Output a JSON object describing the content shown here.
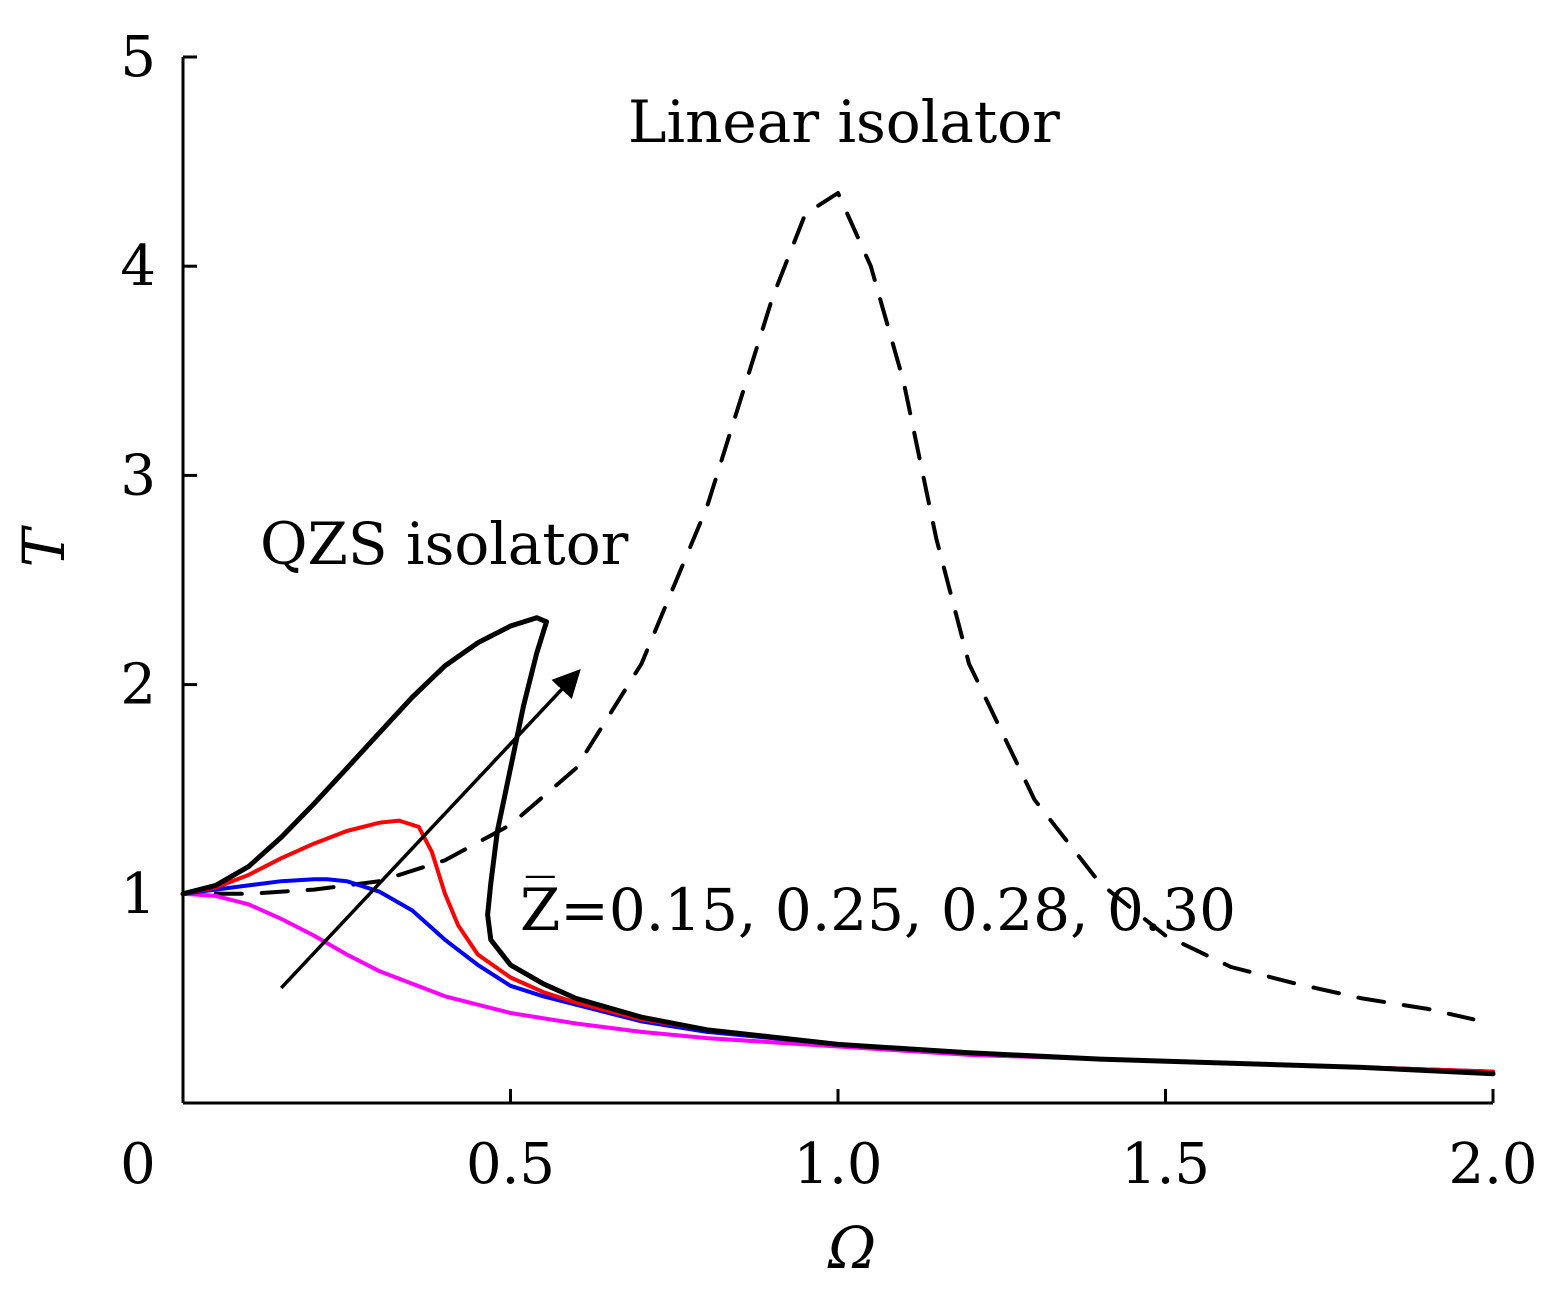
{
  "chart_data": {
    "type": "line",
    "xlabel": "Ω",
    "ylabel": "T",
    "xlim": [
      0,
      2.0
    ],
    "ylim": [
      0,
      5
    ],
    "x_ticks": [
      {
        "value": 0,
        "label": "0"
      },
      {
        "value": 0.5,
        "label": "0.5"
      },
      {
        "value": 1.0,
        "label": "1.0"
      },
      {
        "value": 1.5,
        "label": "1.5"
      },
      {
        "value": 2.0,
        "label": "2.0"
      }
    ],
    "y_ticks": [
      {
        "value": 1,
        "label": "1"
      },
      {
        "value": 2,
        "label": "2"
      },
      {
        "value": 3,
        "label": "3"
      },
      {
        "value": 4,
        "label": "4"
      },
      {
        "value": 5,
        "label": "5"
      }
    ],
    "grid": false,
    "series": [
      {
        "name": "Linear isolator",
        "color": "#000000",
        "style": "dashed",
        "points": [
          [
            0.05,
            1.0
          ],
          [
            0.1,
            1.0
          ],
          [
            0.2,
            1.02
          ],
          [
            0.3,
            1.06
          ],
          [
            0.4,
            1.16
          ],
          [
            0.5,
            1.33
          ],
          [
            0.6,
            1.6
          ],
          [
            0.7,
            2.1
          ],
          [
            0.8,
            2.85
          ],
          [
            0.9,
            3.85
          ],
          [
            0.95,
            4.25
          ],
          [
            1.0,
            4.35
          ],
          [
            1.05,
            4.0
          ],
          [
            1.1,
            3.45
          ],
          [
            1.15,
            2.7
          ],
          [
            1.2,
            2.1
          ],
          [
            1.3,
            1.45
          ],
          [
            1.4,
            1.05
          ],
          [
            1.5,
            0.8
          ],
          [
            1.6,
            0.65
          ],
          [
            1.7,
            0.57
          ],
          [
            1.8,
            0.5
          ],
          [
            1.9,
            0.45
          ],
          [
            1.97,
            0.4
          ]
        ]
      },
      {
        "name": "Z=0.15",
        "color": "#ff00ff",
        "style": "solid",
        "points": [
          [
            0.0,
            1.0
          ],
          [
            0.05,
            0.99
          ],
          [
            0.1,
            0.95
          ],
          [
            0.15,
            0.88
          ],
          [
            0.2,
            0.8
          ],
          [
            0.25,
            0.71
          ],
          [
            0.3,
            0.63
          ],
          [
            0.35,
            0.57
          ],
          [
            0.4,
            0.51
          ],
          [
            0.45,
            0.47
          ],
          [
            0.5,
            0.43
          ],
          [
            0.6,
            0.38
          ],
          [
            0.7,
            0.34
          ],
          [
            0.8,
            0.31
          ],
          [
            1.0,
            0.27
          ],
          [
            1.2,
            0.23
          ],
          [
            1.4,
            0.21
          ],
          [
            1.6,
            0.19
          ],
          [
            1.8,
            0.17
          ],
          [
            2.0,
            0.15
          ]
        ]
      },
      {
        "name": "Z=0.25",
        "color": "#0000ff",
        "style": "solid",
        "points": [
          [
            0.0,
            1.0
          ],
          [
            0.05,
            1.02
          ],
          [
            0.1,
            1.04
          ],
          [
            0.15,
            1.06
          ],
          [
            0.2,
            1.07
          ],
          [
            0.22,
            1.07
          ],
          [
            0.25,
            1.06
          ],
          [
            0.3,
            1.01
          ],
          [
            0.35,
            0.92
          ],
          [
            0.4,
            0.78
          ],
          [
            0.45,
            0.66
          ],
          [
            0.5,
            0.56
          ],
          [
            0.55,
            0.51
          ],
          [
            0.6,
            0.47
          ],
          [
            0.7,
            0.39
          ],
          [
            0.8,
            0.34
          ],
          [
            1.0,
            0.28
          ],
          [
            1.2,
            0.24
          ],
          [
            1.4,
            0.21
          ],
          [
            1.6,
            0.19
          ],
          [
            1.8,
            0.17
          ],
          [
            2.0,
            0.15
          ]
        ]
      },
      {
        "name": "Z=0.28",
        "color": "#ff0000",
        "style": "solid",
        "points": [
          [
            0.0,
            1.0
          ],
          [
            0.05,
            1.03
          ],
          [
            0.1,
            1.09
          ],
          [
            0.15,
            1.17
          ],
          [
            0.2,
            1.24
          ],
          [
            0.25,
            1.3
          ],
          [
            0.3,
            1.34
          ],
          [
            0.33,
            1.35
          ],
          [
            0.36,
            1.32
          ],
          [
            0.38,
            1.2
          ],
          [
            0.4,
            1.0
          ],
          [
            0.42,
            0.85
          ],
          [
            0.45,
            0.71
          ],
          [
            0.5,
            0.6
          ],
          [
            0.55,
            0.53
          ],
          [
            0.6,
            0.48
          ],
          [
            0.7,
            0.4
          ],
          [
            0.8,
            0.35
          ],
          [
            1.0,
            0.28
          ],
          [
            1.2,
            0.24
          ],
          [
            1.4,
            0.21
          ],
          [
            1.6,
            0.19
          ],
          [
            1.8,
            0.17
          ],
          [
            2.0,
            0.15
          ]
        ]
      },
      {
        "name": "Z=0.30",
        "color": "#000000",
        "style": "solid",
        "points": [
          [
            0.0,
            1.0
          ],
          [
            0.05,
            1.04
          ],
          [
            0.1,
            1.13
          ],
          [
            0.15,
            1.27
          ],
          [
            0.2,
            1.43
          ],
          [
            0.25,
            1.6
          ],
          [
            0.3,
            1.77
          ],
          [
            0.35,
            1.94
          ],
          [
            0.4,
            2.09
          ],
          [
            0.45,
            2.2
          ],
          [
            0.5,
            2.28
          ],
          [
            0.54,
            2.32
          ],
          [
            0.555,
            2.3
          ],
          [
            0.54,
            2.15
          ],
          [
            0.52,
            1.9
          ],
          [
            0.5,
            1.6
          ],
          [
            0.48,
            1.3
          ],
          [
            0.47,
            1.05
          ],
          [
            0.465,
            0.9
          ],
          [
            0.47,
            0.78
          ],
          [
            0.5,
            0.66
          ],
          [
            0.55,
            0.57
          ],
          [
            0.6,
            0.5
          ],
          [
            0.7,
            0.41
          ],
          [
            0.8,
            0.35
          ],
          [
            1.0,
            0.28
          ],
          [
            1.2,
            0.24
          ],
          [
            1.4,
            0.21
          ],
          [
            1.6,
            0.19
          ],
          [
            1.8,
            0.17
          ],
          [
            2.0,
            0.14
          ]
        ]
      }
    ],
    "annotations": {
      "linear_label": "Linear isolator",
      "qzs_label": "QZS isolator",
      "z_label": "Z̅=0.15, 0.25, 0.28, 0.30",
      "arrow": {
        "from": [
          0.15,
          0.55
        ],
        "to": [
          0.6,
          2.05
        ]
      }
    }
  }
}
